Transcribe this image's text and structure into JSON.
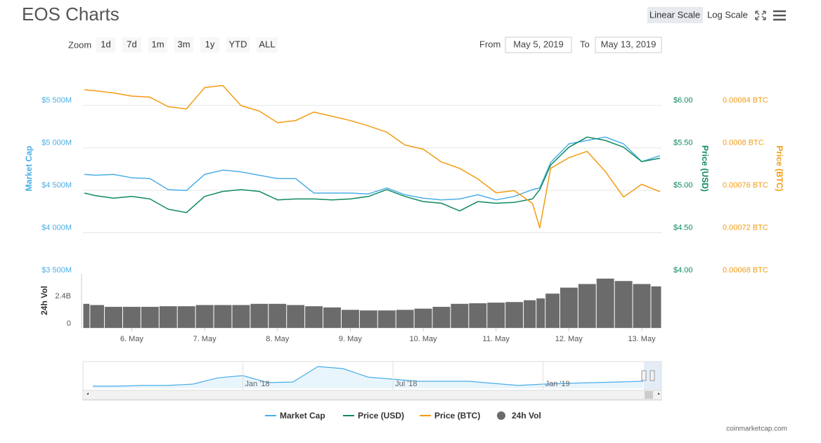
{
  "ui": {
    "zoom_label": "Zoom",
    "zoom_buttons": [
      "1d",
      "7d",
      "1m",
      "3m",
      "1y",
      "YTD",
      "ALL"
    ],
    "from_label": "From",
    "from_value": "May 5, 2019",
    "to_label": "To",
    "to_value": "May 13, 2019",
    "scale_buttons": [
      "Linear Scale",
      "Log Scale"
    ],
    "credit": "coinmarketcap.com"
  },
  "chart_data": [
    {
      "type": "line",
      "title": "EOS Charts",
      "x": [
        5.35,
        5.5,
        5.75,
        6,
        6.25,
        6.5,
        6.75,
        7,
        7.25,
        7.5,
        7.75,
        8,
        8.25,
        8.5,
        8.75,
        9,
        9.25,
        9.5,
        9.75,
        10,
        10.25,
        10.5,
        10.75,
        11,
        11.25,
        11.5,
        11.6,
        11.75,
        12,
        12.25,
        12.5,
        12.75,
        13,
        13.25
      ],
      "xlim": [
        5.33,
        13.27
      ],
      "ylabel": "Market Cap",
      "y2label": "Price (USD)",
      "y3label": "Price (BTC)",
      "ylim": [
        3500,
        5940
      ],
      "yticks": [
        {
          "value": 3500,
          "label": "$3 500M"
        },
        {
          "value": 4000,
          "label": "$4 000M"
        },
        {
          "value": 4500,
          "label": "$4 500M"
        },
        {
          "value": 5000,
          "label": "$5 000M"
        },
        {
          "value": 5500,
          "label": "$5 500M"
        }
      ],
      "y2lim": [
        4,
        6.44
      ],
      "y2ticks": [
        {
          "value": 4,
          "label": "$4.00"
        },
        {
          "value": 4.5,
          "label": "$4.50"
        },
        {
          "value": 5,
          "label": "$5.00"
        },
        {
          "value": 5.5,
          "label": "$5.50"
        },
        {
          "value": 6,
          "label": "$6.00"
        }
      ],
      "y3lim": [
        0.00068,
        0.000875
      ],
      "y3ticks": [
        {
          "value": 0.00068,
          "label": "0.00068 BTC"
        },
        {
          "value": 0.00072,
          "label": "0.00072 BTC"
        },
        {
          "value": 0.00076,
          "label": "0.00076 BTC"
        },
        {
          "value": 0.0008,
          "label": "0.0008 BTC"
        },
        {
          "value": 0.00084,
          "label": "0.00084 BTC"
        }
      ],
      "grid": true,
      "series": [
        {
          "name": "Market Cap",
          "color": "#4aaee8",
          "axis": "y",
          "values": [
            4630,
            4620,
            4630,
            4590,
            4580,
            4450,
            4440,
            4630,
            4680,
            4660,
            4620,
            4580,
            4580,
            4410,
            4410,
            4410,
            4400,
            4470,
            4390,
            4350,
            4330,
            4340,
            4390,
            4330,
            4370,
            4450,
            4470,
            4770,
            4990,
            5030,
            5070,
            4990,
            4780,
            4850
          ]
        },
        {
          "name": "Price (USD)",
          "color": "#0e8a5f",
          "axis": "y2",
          "values": [
            4.91,
            4.88,
            4.85,
            4.87,
            4.84,
            4.72,
            4.68,
            4.87,
            4.93,
            4.95,
            4.93,
            4.83,
            4.84,
            4.84,
            4.83,
            4.84,
            4.87,
            4.95,
            4.87,
            4.81,
            4.79,
            4.7,
            4.81,
            4.79,
            4.8,
            4.84,
            4.95,
            5.24,
            5.45,
            5.57,
            5.53,
            5.45,
            5.28,
            5.32
          ]
        },
        {
          "name": "Price (BTC)",
          "color": "#f39c12",
          "axis": "y3",
          "values": [
            0.00085,
            0.000849,
            0.000847,
            0.000844,
            0.000843,
            0.000834,
            0.000832,
            0.000852,
            0.000854,
            0.000835,
            0.00083,
            0.000819,
            0.000821,
            0.000829,
            0.000825,
            0.000821,
            0.000816,
            0.00081,
            0.000798,
            0.000794,
            0.000782,
            0.000776,
            0.000766,
            0.000753,
            0.000755,
            0.000743,
            0.00072,
            0.000776,
            0.000786,
            0.000792,
            0.000773,
            0.000749,
            0.000761,
            0.000754
          ]
        }
      ]
    },
    {
      "type": "bar",
      "x": [
        5.35,
        5.5,
        5.75,
        6,
        6.25,
        6.5,
        6.75,
        7,
        7.25,
        7.5,
        7.75,
        8,
        8.25,
        8.5,
        8.75,
        9,
        9.25,
        9.5,
        9.75,
        10,
        10.25,
        10.5,
        10.75,
        11,
        11.25,
        11.5,
        11.6,
        11.75,
        12,
        12.25,
        12.5,
        12.75,
        13,
        13.25
      ],
      "xlim": [
        5.33,
        13.27
      ],
      "xticks": [
        {
          "value": 6,
          "label": "6. May"
        },
        {
          "value": 7,
          "label": "7. May"
        },
        {
          "value": 8,
          "label": "8. May"
        },
        {
          "value": 9,
          "label": "9. May"
        },
        {
          "value": 10,
          "label": "10. May"
        },
        {
          "value": 11,
          "label": "11. May"
        },
        {
          "value": 12,
          "label": "12. May"
        },
        {
          "value": 13,
          "label": "13. May"
        }
      ],
      "ylabel": "24h Vol",
      "ylim": [
        0,
        4.5
      ],
      "yticks": [
        0,
        {
          "value": 2.4,
          "label": "2.4B"
        }
      ],
      "series": [
        {
          "name": "24h Vol",
          "color": "#6b6b6b",
          "values": [
            2.0,
            1.9,
            1.75,
            1.75,
            1.75,
            1.8,
            1.8,
            1.9,
            1.9,
            1.9,
            2.0,
            2.0,
            1.9,
            1.8,
            1.7,
            1.5,
            1.45,
            1.45,
            1.5,
            1.6,
            1.75,
            2.0,
            2.05,
            2.1,
            2.15,
            2.3,
            2.45,
            2.85,
            3.35,
            3.65,
            4.1,
            3.9,
            3.65,
            3.45
          ]
        }
      ]
    },
    {
      "type": "area",
      "categories": [
        null,
        null,
        null,
        null,
        null,
        null,
        "Jan '18",
        null,
        null,
        null,
        null,
        null,
        "Jul '18",
        null,
        null,
        null,
        null,
        null,
        "Jan '19",
        null,
        null,
        null,
        null
      ],
      "values": [
        1400,
        1400,
        1900,
        1900,
        2800,
        7000,
        8500,
        3800,
        4200,
        14600,
        13200,
        7500,
        6100,
        4700,
        4700,
        4700,
        3300,
        1900,
        2800,
        3300,
        3800,
        4200,
        4700
      ],
      "ylim": [
        0,
        17000
      ],
      "color": "#4aaee8"
    }
  ]
}
